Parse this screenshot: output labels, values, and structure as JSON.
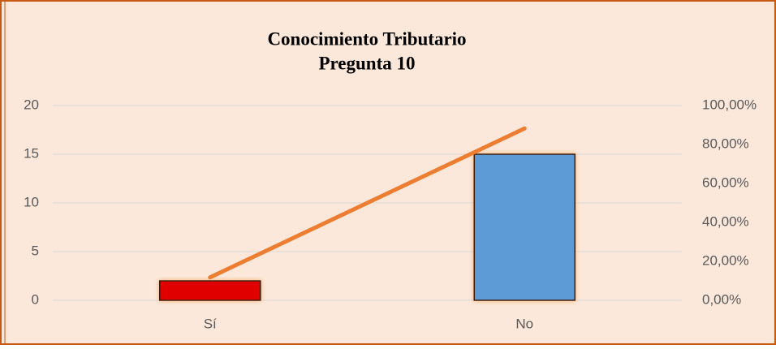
{
  "chart_data": {
    "type": "bar",
    "title": "Conocimiento Tributario",
    "subtitle": "Pregunta 10",
    "categories": [
      "Sí",
      "No"
    ],
    "series": [
      {
        "colors": [
          "#e00000",
          "#5b9bd5"
        ],
        "values": [
          2,
          15
        ]
      },
      {
        "type": "line",
        "axis": "y2",
        "color": "#ed7d31",
        "values": [
          11.76,
          88.24
        ]
      }
    ],
    "ylim": [
      0,
      20
    ],
    "yticks": [
      0,
      5,
      10,
      15,
      20
    ],
    "y2lim": [
      0,
      100
    ],
    "y2ticks": [
      {
        "value": 0,
        "label": "0,00%"
      },
      {
        "value": 20,
        "label": "20,00%"
      },
      {
        "value": 40,
        "label": "40,00%"
      },
      {
        "value": 60,
        "label": "60,00%"
      },
      {
        "value": 80,
        "label": "80,00%"
      },
      {
        "value": 100,
        "label": "100,00%"
      }
    ],
    "grid": true
  }
}
